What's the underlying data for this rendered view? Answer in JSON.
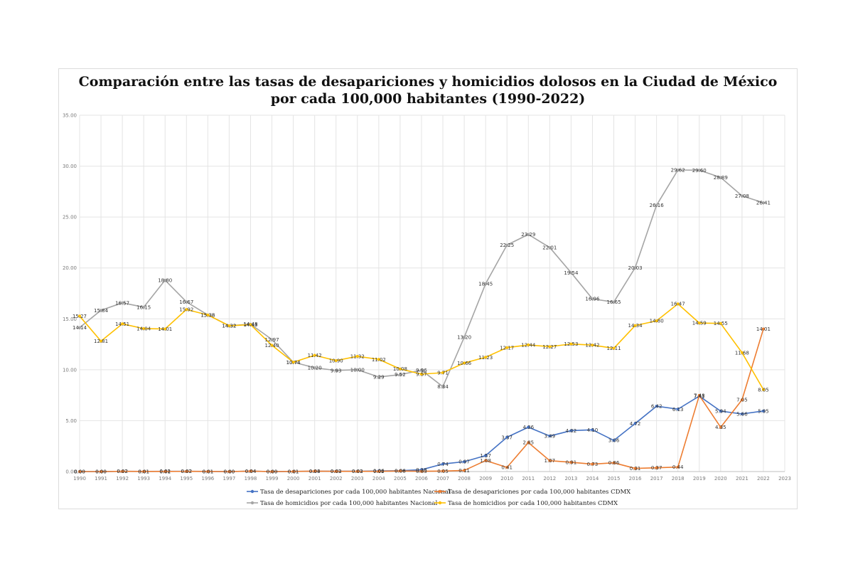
{
  "chart_data": {
    "type": "line",
    "title_line1": "Comparación entre las tasas de desapariciones y homicidios dolosos en la Ciudad de México",
    "title_line2": "por cada 100,000 habitantes (1990-2022)",
    "x": [
      1990,
      1991,
      1992,
      1993,
      1994,
      1995,
      1996,
      1997,
      1998,
      1999,
      2000,
      2001,
      2002,
      2003,
      2004,
      2005,
      2006,
      2007,
      2008,
      2009,
      2010,
      2011,
      2012,
      2013,
      2014,
      2015,
      2016,
      2017,
      2018,
      2019,
      2020,
      2021,
      2022
    ],
    "x_ticks": [
      "1990",
      "1991",
      "1992",
      "1993",
      "1994",
      "1995",
      "1996",
      "1997",
      "1998",
      "1999",
      "2000",
      "2001",
      "2002",
      "2003",
      "2004",
      "2005",
      "2006",
      "2007",
      "2008",
      "2009",
      "2010",
      "2011",
      "2012",
      "2013",
      "2014",
      "2015",
      "2016",
      "2017",
      "2018",
      "2019",
      "2020",
      "2021",
      "2022",
      "2023"
    ],
    "y_ticks": [
      "0.00",
      "5.00",
      "10.00",
      "15.00",
      "20.00",
      "25.00",
      "30.00",
      "35.00"
    ],
    "ylim": [
      0,
      35
    ],
    "grid": true,
    "legend_position": "bottom",
    "series": [
      {
        "name": "Tasa de desapariciones por cada 100,000 habitantes Nacional",
        "color": "#4472c4",
        "values": [
          0.0,
          0.0,
          0.02,
          0.01,
          0.02,
          0.02,
          0.01,
          0.0,
          0.04,
          0.0,
          0.01,
          0.03,
          0.03,
          0.03,
          0.06,
          0.08,
          0.18,
          0.74,
          0.97,
          1.57,
          3.37,
          4.36,
          3.49,
          4.02,
          4.1,
          3.06,
          4.72,
          6.42,
          6.13,
          7.41,
          5.94,
          5.66,
          5.95
        ]
      },
      {
        "name": "Tasa de desapariciones por cada 100,000 habitantes CDMX",
        "color": "#ed7d31",
        "values": [
          0.0,
          0.0,
          0.02,
          0.01,
          0.01,
          0.02,
          0.01,
          0.0,
          0.04,
          0.0,
          0.01,
          0.04,
          0.02,
          0.02,
          0.02,
          0.06,
          0.03,
          0.05,
          0.11,
          1.08,
          0.41,
          2.85,
          1.07,
          0.91,
          0.73,
          0.86,
          0.31,
          0.37,
          0.44,
          7.48,
          4.35,
          7.05,
          14.01
        ]
      },
      {
        "name": "Tasa de homicidios por cada 100,000 habitantes Nacional",
        "color": "#a5a5a5",
        "values": [
          14.14,
          15.84,
          16.57,
          16.15,
          18.8,
          16.67,
          15.38,
          14.32,
          14.48,
          12.97,
          10.74,
          10.2,
          9.93,
          10.0,
          9.29,
          9.52,
          9.96,
          8.34,
          13.2,
          18.45,
          22.25,
          23.29,
          22.01,
          19.54,
          16.96,
          16.65,
          20.03,
          26.16,
          29.62,
          29.6,
          28.89,
          27.08,
          26.41
        ]
      },
      {
        "name": "Tasa de homicidios por cada 100,000 habitantes CDMX",
        "color": "#ffc000",
        "values": [
          15.27,
          12.81,
          14.51,
          14.04,
          14.01,
          15.92,
          15.38,
          14.32,
          14.43,
          12.4,
          10.74,
          11.42,
          10.9,
          11.32,
          11.02,
          10.08,
          9.57,
          9.71,
          10.66,
          11.23,
          12.17,
          12.44,
          12.27,
          12.53,
          12.42,
          12.11,
          14.34,
          14.8,
          16.47,
          14.59,
          14.55,
          11.68,
          8.05
        ]
      }
    ],
    "data_labels": [
      [
        "0.00",
        "0.00",
        "0.02",
        "0.01",
        "0.02",
        "0.02",
        "0.01",
        "0.00",
        "0.04",
        "0.00",
        "0.01",
        "0.03",
        "0.03",
        "0.03",
        "0.06",
        "0.08",
        "0.18",
        "0.74",
        "0.97",
        "1.57",
        "3.37",
        "4.36",
        "3.49",
        "4.02",
        "4.10",
        "3.06",
        "4.72",
        "6.42",
        "6.13",
        "7.41",
        "5.94",
        "5.66",
        "5.95"
      ],
      [
        "0.00",
        "0.00",
        "0.02",
        "0.01",
        "0.01",
        "0.02",
        "0.01",
        "0.00",
        "0.04",
        "0.00",
        "0.01",
        "0.04",
        "0.02",
        "0.02",
        "0.02",
        "0.06",
        "0.03",
        "0.05",
        "0.11",
        "1.08",
        "0.41",
        "2.85",
        "1.07",
        "0.91",
        "0.73",
        "0.86",
        "0.31",
        "0.37",
        "0.44",
        "7.48",
        "4.35",
        "7.05",
        "14.01"
      ],
      [
        "14.14",
        "15.84",
        "16.57",
        "16.15",
        "18.80",
        "16.67",
        "15.38",
        "14.32",
        "14.48",
        "12.97",
        "10.74",
        "10.20",
        "9.93",
        "10.00",
        "9.29",
        "9.52",
        "9.96",
        "8.34",
        "13.20",
        "18.45",
        "22.25",
        "23.29",
        "22.01",
        "19.54",
        "16.96",
        "16.65",
        "20.03",
        "26.16",
        "29.62",
        "29.60",
        "28.89",
        "27.08",
        "26.41"
      ],
      [
        "15.27",
        "12.81",
        "14.51",
        "14.04",
        "14.01",
        "15.92",
        "15.38",
        "14.32",
        "14.43",
        "12.40",
        "10.74",
        "11.42",
        "10.90",
        "11.32",
        "11.02",
        "10.08",
        "9.57",
        "9.71",
        "10.66",
        "11.23",
        "12.17",
        "12.44",
        "12.27",
        "12.53",
        "12.42",
        "12.11",
        "14.34",
        "14.80",
        "16.47",
        "14.59",
        "14.55",
        "11.68",
        "8.05"
      ]
    ]
  }
}
